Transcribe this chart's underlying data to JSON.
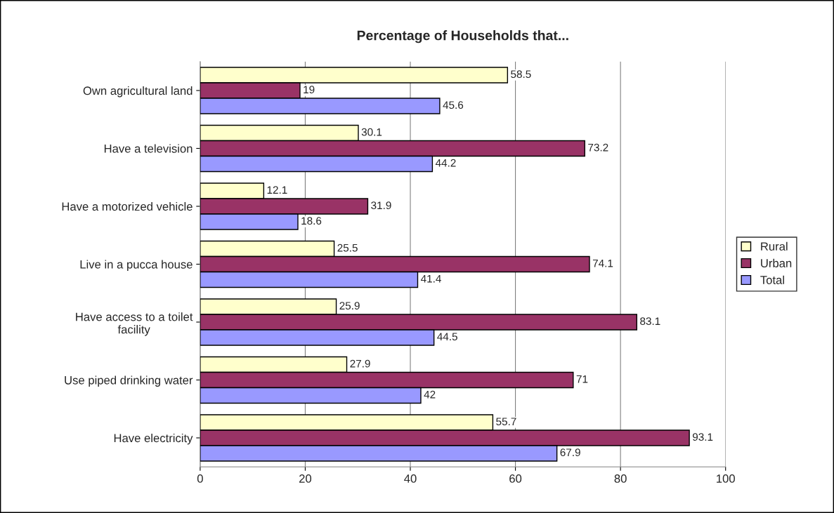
{
  "chart_data": {
    "type": "bar",
    "orientation": "horizontal",
    "title": "Percentage of Households that...",
    "categories": [
      "Own agricultural land",
      "Have a television",
      "Have a motorized vehicle",
      "Live in a pucca house",
      "Have access to a toilet\nfacility",
      "Use piped drinking water",
      "Have electricity"
    ],
    "series": [
      {
        "name": "Rural",
        "color": "#ffffcc",
        "values": [
          58.5,
          30.1,
          12.1,
          25.5,
          25.9,
          27.9,
          55.7
        ]
      },
      {
        "name": "Urban",
        "color": "#993366",
        "values": [
          19,
          73.2,
          31.9,
          74.1,
          83.1,
          71,
          93.1
        ]
      },
      {
        "name": "Total",
        "color": "#9999ff",
        "values": [
          45.6,
          44.2,
          18.6,
          41.4,
          44.5,
          42,
          67.9
        ]
      }
    ],
    "xlim": [
      0,
      100
    ],
    "xticks": [
      0,
      20,
      40,
      60,
      80,
      100
    ],
    "grid": "x",
    "legend": "right",
    "data_labels": true
  }
}
